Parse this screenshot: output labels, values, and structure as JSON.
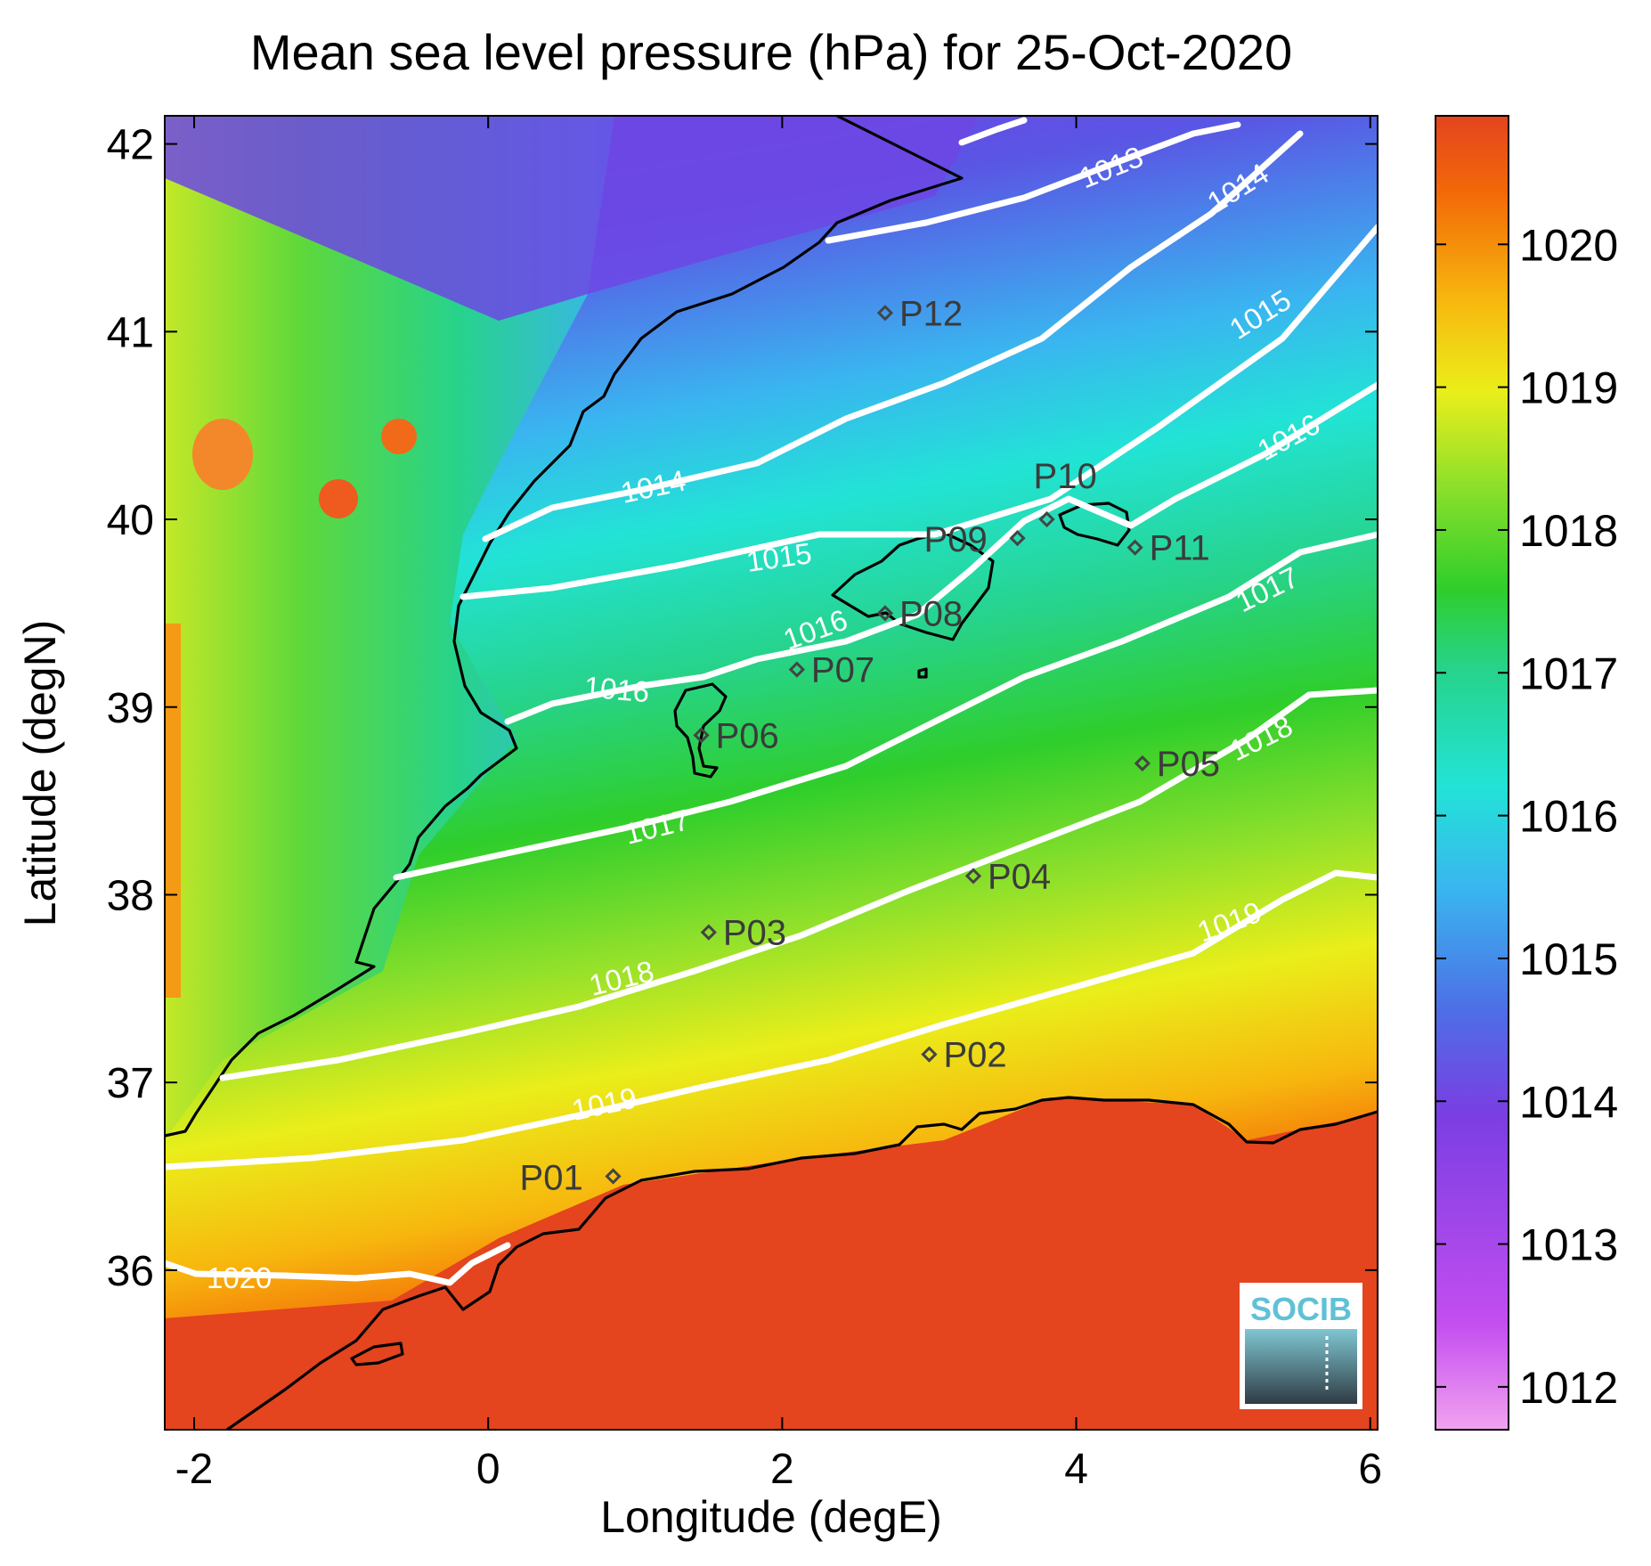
{
  "title": "Mean sea level pressure (hPa) for 25-Oct-2020",
  "xlabel": "Longitude (degE)",
  "ylabel": "Latitude (degN)",
  "map": {
    "lon_range": [
      -2.2,
      6.05
    ],
    "lat_range": [
      35.15,
      42.15
    ],
    "x_ticks": [
      "-2",
      "0",
      "2",
      "4",
      "6"
    ],
    "x_tick_values": [
      -2,
      0,
      2,
      4,
      6
    ],
    "y_ticks": [
      "36",
      "37",
      "38",
      "39",
      "40",
      "41",
      "42"
    ],
    "y_tick_values": [
      36,
      37,
      38,
      39,
      40,
      41,
      42
    ],
    "colormap": [
      "#f1a3ef",
      "#c44ef0",
      "#7a3ee2",
      "#4d6fe6",
      "#3ab4f0",
      "#22e3d6",
      "#27d38a",
      "#2fce2b",
      "#8fe02b",
      "#eaee1a",
      "#f7b70e",
      "#f36a08",
      "#e4441e"
    ]
  },
  "colorbar": {
    "range": [
      1011.7,
      1020.9
    ],
    "ticks": [
      "1012",
      "1013",
      "1014",
      "1015",
      "1016",
      "1017",
      "1018",
      "1019",
      "1020"
    ],
    "tick_values": [
      1012,
      1013,
      1014,
      1015,
      1016,
      1017,
      1018,
      1019,
      1020
    ]
  },
  "contours": [
    {
      "level": 1013,
      "label": "1013"
    },
    {
      "level": 1014,
      "label": "1014"
    },
    {
      "level": 1015,
      "label": "1015"
    },
    {
      "level": 1016,
      "label": "1016"
    },
    {
      "level": 1017,
      "label": "1017"
    },
    {
      "level": 1018,
      "label": "1018"
    },
    {
      "level": 1019,
      "label": "1019"
    },
    {
      "level": 1020,
      "label": "1020"
    }
  ],
  "stations": [
    {
      "name": "P01",
      "lon": 0.85,
      "lat": 36.5
    },
    {
      "name": "P02",
      "lon": 3.0,
      "lat": 37.15
    },
    {
      "name": "P03",
      "lon": 1.5,
      "lat": 37.8
    },
    {
      "name": "P04",
      "lon": 3.3,
      "lat": 38.1
    },
    {
      "name": "P05",
      "lon": 4.45,
      "lat": 38.7
    },
    {
      "name": "P06",
      "lon": 1.45,
      "lat": 38.85
    },
    {
      "name": "P07",
      "lon": 2.1,
      "lat": 39.2
    },
    {
      "name": "P08",
      "lon": 2.7,
      "lat": 39.5
    },
    {
      "name": "P09",
      "lon": 3.6,
      "lat": 39.9
    },
    {
      "name": "P10",
      "lon": 3.8,
      "lat": 40.0
    },
    {
      "name": "P11",
      "lon": 4.4,
      "lat": 39.85
    },
    {
      "name": "P12",
      "lon": 2.7,
      "lat": 41.1
    }
  ],
  "logo": {
    "text": "SOCIB"
  }
}
